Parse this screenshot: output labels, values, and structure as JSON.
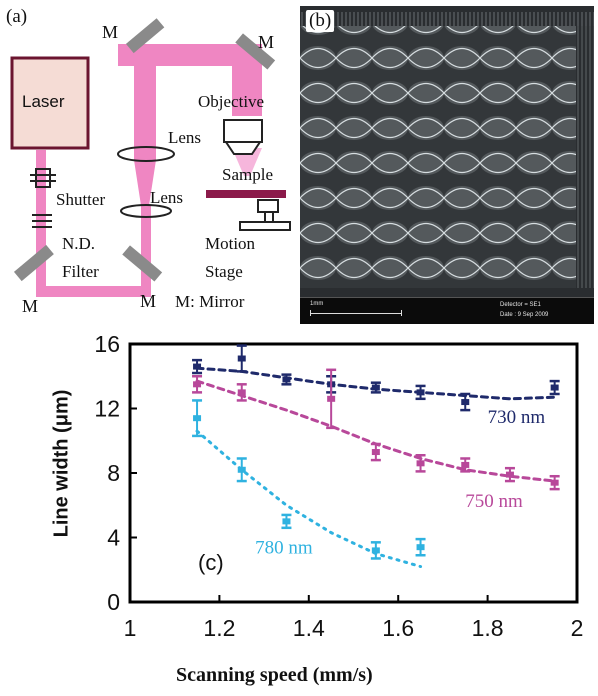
{
  "panel_a": {
    "panel_label": "(a)",
    "laser": "Laser",
    "mirror_labels": [
      "M",
      "M",
      "M",
      "M"
    ],
    "lens_top": "Lens",
    "lens_bottom": "Lens",
    "objective": "Objective",
    "sample": "Sample",
    "shutter": "Shutter",
    "nd_filter_line1": "N.D.",
    "nd_filter_line2": "Filter",
    "motion_stage_line1": "Motion",
    "motion_stage_line2": "Stage",
    "mirror_legend": "M: Mirror",
    "colors": {
      "beam": "#ef86c2",
      "laser_fill": "#f5dcd5",
      "sample": "#8b1a4a",
      "mirror": "#8a8a8a"
    }
  },
  "panel_b": {
    "panel_label": "(b)",
    "scale_label": "1mm",
    "detector": "Detector = SE1",
    "date": "Date : 9 Sep 2009"
  },
  "chart_data": {
    "type": "scatter",
    "panel_label": "(c)",
    "xlabel": "Scanning speed (mm/s)",
    "ylabel": "Line width (μm)",
    "xlim": [
      1,
      2
    ],
    "ylim": [
      0,
      16
    ],
    "x_ticks": [
      "1",
      "1.2",
      "1.4",
      "1.6",
      "1.8",
      "2"
    ],
    "y_ticks": [
      "0",
      "4",
      "8",
      "12",
      "16"
    ],
    "series": [
      {
        "name": "730 nm",
        "color": "#1f2a6b",
        "x": [
          1.15,
          1.25,
          1.35,
          1.45,
          1.55,
          1.65,
          1.75,
          1.95
        ],
        "y": [
          14.6,
          15.1,
          13.8,
          13.5,
          13.3,
          13.0,
          12.4,
          13.3
        ],
        "err": [
          0.4,
          0.8,
          0.3,
          0.5,
          0.3,
          0.4,
          0.5,
          0.4
        ],
        "trend_x": [
          1.15,
          1.25,
          1.35,
          1.45,
          1.55,
          1.65,
          1.75,
          1.85,
          1.95
        ],
        "trend_y": [
          14.5,
          14.3,
          13.9,
          13.5,
          13.2,
          13.0,
          12.8,
          12.6,
          12.7
        ]
      },
      {
        "name": "750 nm",
        "color": "#b8489a",
        "x": [
          1.15,
          1.25,
          1.45,
          1.55,
          1.65,
          1.75,
          1.85,
          1.95
        ],
        "y": [
          13.5,
          13.0,
          12.6,
          9.3,
          8.6,
          8.5,
          7.9,
          7.4
        ],
        "err": [
          0.5,
          0.5,
          1.8,
          0.5,
          0.5,
          0.4,
          0.4,
          0.4
        ],
        "trend_x": [
          1.15,
          1.25,
          1.35,
          1.45,
          1.55,
          1.65,
          1.75,
          1.85,
          1.95
        ],
        "trend_y": [
          13.7,
          12.8,
          11.9,
          10.9,
          9.8,
          8.9,
          8.2,
          7.8,
          7.5
        ]
      },
      {
        "name": "780 nm",
        "color": "#2fb2e0",
        "x": [
          1.15,
          1.25,
          1.35,
          1.55,
          1.65
        ],
        "y": [
          11.4,
          8.2,
          5.0,
          3.2,
          3.4
        ],
        "err": [
          1.1,
          0.7,
          0.4,
          0.5,
          0.5
        ],
        "trend_x": [
          1.15,
          1.25,
          1.35,
          1.45,
          1.55,
          1.65
        ],
        "trend_y": [
          10.6,
          8.2,
          6.0,
          4.3,
          3.0,
          2.2
        ]
      }
    ],
    "grid": false,
    "legend": "inline labels"
  }
}
